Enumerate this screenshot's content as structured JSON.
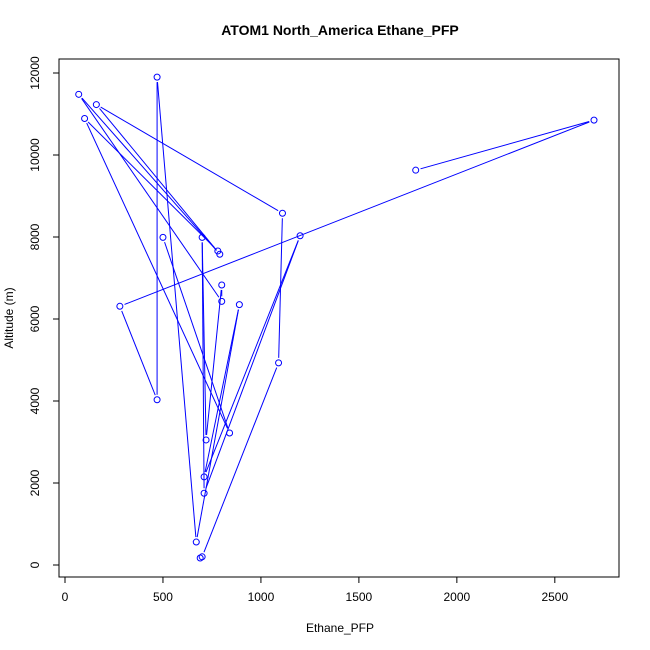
{
  "chart_data": {
    "type": "line",
    "title": "ATOM1 North_America Ethane_PFP",
    "xlabel": "Ethane_PFP",
    "ylabel": "Altitude (m)",
    "xlim": [
      0,
      2800
    ],
    "ylim": [
      0,
      12000
    ],
    "xticks": [
      0,
      500,
      1000,
      1500,
      2000,
      2500
    ],
    "yticks": [
      0,
      2000,
      4000,
      6000,
      8000,
      10000,
      12000
    ],
    "marker": "open-circle",
    "grid": false,
    "series": [
      {
        "color": "#0000ff",
        "points": [
          {
            "x": 690,
            "y": 170
          },
          {
            "x": 700,
            "y": 200
          },
          {
            "x": 1090,
            "y": 4930
          },
          {
            "x": 1110,
            "y": 8580
          },
          {
            "x": 160,
            "y": 11230
          },
          {
            "x": 790,
            "y": 7580
          },
          {
            "x": 70,
            "y": 11480
          },
          {
            "x": 800,
            "y": 6430
          },
          {
            "x": 800,
            "y": 6830
          },
          {
            "x": 720,
            "y": 3050
          },
          {
            "x": 700,
            "y": 7990
          },
          {
            "x": 710,
            "y": 1750
          },
          {
            "x": 1200,
            "y": 8030
          },
          {
            "x": 710,
            "y": 2150
          },
          {
            "x": 890,
            "y": 6350
          },
          {
            "x": 670,
            "y": 560
          },
          {
            "x": 470,
            "y": 11900
          },
          {
            "x": 470,
            "y": 4030
          },
          {
            "x": 280,
            "y": 6310
          },
          {
            "x": 2700,
            "y": 10850
          },
          {
            "x": 1790,
            "y": 9630
          }
        ]
      },
      {
        "color": "#0000ff",
        "points": [
          {
            "x": 500,
            "y": 7990
          },
          {
            "x": 840,
            "y": 3220
          },
          {
            "x": 100,
            "y": 10890
          },
          {
            "x": 780,
            "y": 7660
          }
        ]
      }
    ]
  }
}
